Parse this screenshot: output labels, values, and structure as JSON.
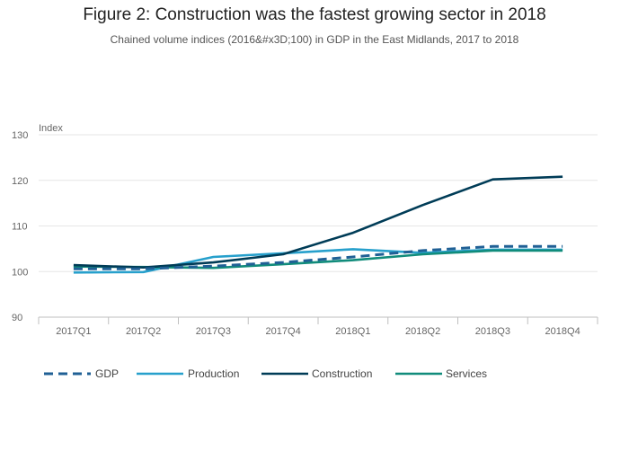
{
  "header": {
    "title": "Figure 2: Construction was the fastest growing sector in 2018",
    "subtitle": "Chained volume indices (2016&#x3D;100) in GDP in the East Midlands, 2017 to 2018"
  },
  "chart_data": {
    "type": "line",
    "title": "Figure 2: Construction was the fastest growing sector in 2018",
    "subtitle": "Chained volume indices (2016&#x3D;100) in GDP in the East Midlands, 2017 to 2018",
    "ylabel": "Index",
    "xlabel": "",
    "ylim": [
      90,
      130
    ],
    "yticks": [
      90,
      100,
      110,
      120,
      130
    ],
    "grid": true,
    "legend_position": "bottom",
    "categories": [
      "2017Q1",
      "2017Q2",
      "2017Q3",
      "2017Q4",
      "2018Q1",
      "2018Q2",
      "2018Q3",
      "2018Q4"
    ],
    "series": [
      {
        "name": "GDP",
        "color": "#206095",
        "dash": "dashed",
        "values": [
          100.6,
          100.6,
          101.2,
          102.0,
          103.2,
          104.6,
          105.5,
          105.5
        ]
      },
      {
        "name": "Production",
        "color": "#27a0cc",
        "dash": "solid",
        "values": [
          99.8,
          99.9,
          103.2,
          104.0,
          104.9,
          104.1,
          104.8,
          104.8
        ]
      },
      {
        "name": "Construction",
        "color": "#003c57",
        "dash": "solid",
        "values": [
          101.4,
          100.9,
          102.0,
          103.8,
          108.5,
          114.6,
          120.2,
          120.8
        ]
      },
      {
        "name": "Services",
        "color": "#118c7b",
        "dash": "solid",
        "values": [
          101.1,
          101.0,
          100.8,
          101.6,
          102.5,
          103.8,
          104.6,
          104.6
        ]
      }
    ]
  }
}
